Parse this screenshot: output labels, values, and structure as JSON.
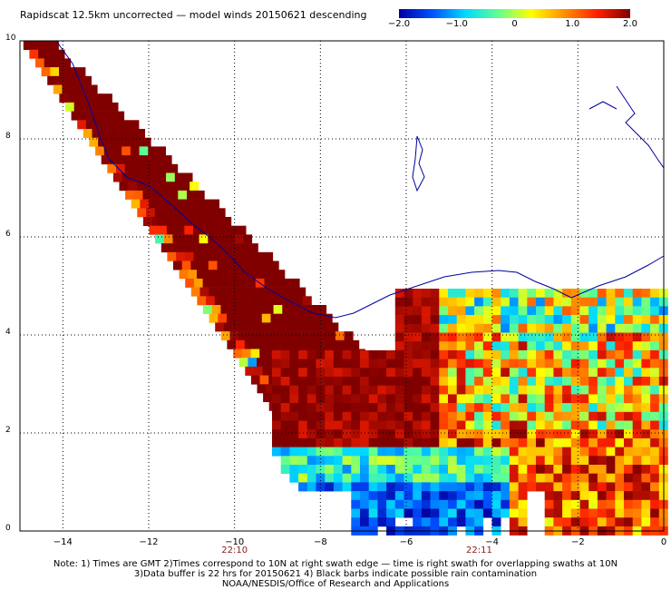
{
  "title": "Rapidscat 12.5km uncorrected — model winds 20150621 descending",
  "colorbar": {
    "labels": [
      "−2.0",
      "−1.0",
      "0",
      "1.0",
      "2.0"
    ],
    "values": [
      -2.0,
      -1.0,
      0,
      1.0,
      2.0
    ],
    "stops": [
      "#0000a0",
      "#0050ff",
      "#00d8ff",
      "#60ff90",
      "#ffff00",
      "#ff9000",
      "#ff2000",
      "#800000"
    ]
  },
  "axes": {
    "x_ticks": [
      "−14",
      "−12",
      "−10",
      "−8",
      "−6",
      "−4",
      "−2",
      "0"
    ],
    "x_values": [
      -14,
      -12,
      -10,
      -8,
      -6,
      -4,
      -2,
      0
    ],
    "y_ticks": [
      "0",
      "2",
      "4",
      "6",
      "8",
      "10"
    ],
    "y_values": [
      0,
      2,
      4,
      6,
      8,
      10
    ],
    "xlim": [
      -15,
      0
    ],
    "ylim": [
      0,
      10
    ]
  },
  "times": [
    {
      "label": "22:10",
      "lon": -10
    },
    {
      "label": "22:11",
      "lon": -4.3
    }
  ],
  "notes": [
    "Note: 1) Times are GMT 2)Times correspond to 10N at right swath edge — time is right swath for overlapping swaths at 10N",
    "3)Data buffer is 22 hrs for 20150621 4) Black barbs indicate possible rain contamination",
    "NOAA/NESDIS/Office of Research and Applications"
  ]
}
